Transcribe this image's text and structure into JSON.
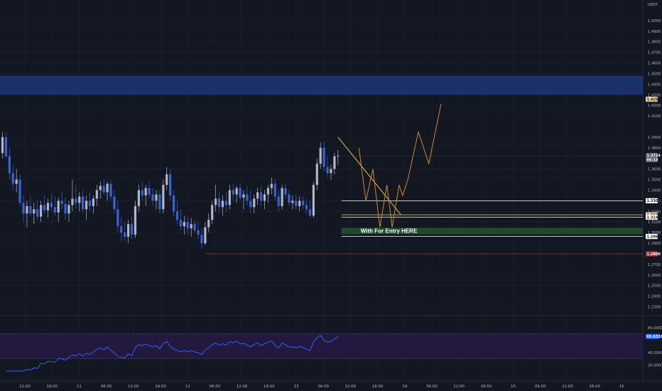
{
  "chart_data": {
    "type": "candlestick",
    "currency": "USDT",
    "price_ticks": [
      "1.5000",
      "1.4900",
      "1.4800",
      "1.4700",
      "1.4600",
      "1.4500",
      "1.4400",
      "1.4300",
      "1.4200",
      "1.4100",
      "1.3900",
      "1.3800",
      "1.3600",
      "1.3500",
      "1.3400",
      "1.3300",
      "1.3200",
      "1.3100",
      "1.3000",
      "1.2900",
      "1.2700",
      "1.2600",
      "1.2500",
      "1.2400",
      "1.2300"
    ],
    "time_ticks": [
      "12:00",
      "18:00",
      "11",
      "06:00",
      "12:00",
      "18:00",
      "12",
      "06:00",
      "12:00",
      "18:00",
      "13",
      "06:00",
      "12:00",
      "18:00",
      "14",
      "06:00",
      "12:00",
      "18:00",
      "15",
      "06:00",
      "12:00",
      "18:00",
      "16"
    ],
    "price_ylim": [
      1.227,
      1.51
    ],
    "last_price": "1.3724",
    "countdown": "06:13",
    "zone_high": [
      1.43,
      1.448
    ],
    "entry_zone": [
      1.2985,
      1.3045
    ],
    "entry_label": "With For Entry HERE",
    "levels": [
      {
        "label": "1.4258",
        "price": 1.4258,
        "color": "#f2d59b"
      },
      {
        "label": "1.3300",
        "price": 1.33,
        "color": "#ffffff"
      },
      {
        "label": "1.3168",
        "price": 1.3168,
        "color": "#f2d59b"
      },
      {
        "label": "1.3145",
        "price": 1.3145,
        "color": "#ffffff"
      },
      {
        "label": "1.2963",
        "price": 1.2963,
        "color": "#ffffff"
      },
      {
        "label": "1.2800",
        "price": 1.28,
        "color": "#b22833"
      }
    ],
    "trendline": {
      "from": [
        96,
        1.39
      ],
      "to": [
        114,
        1.3168
      ]
    },
    "projection": [
      [
        102,
        1.38
      ],
      [
        104,
        1.33
      ],
      [
        106,
        1.36
      ],
      [
        108,
        1.305
      ],
      [
        110,
        1.345
      ],
      [
        111.5,
        1.305
      ],
      [
        113.5,
        1.345
      ],
      [
        114.5,
        1.335
      ],
      [
        116,
        1.35
      ],
      [
        119,
        1.395
      ],
      [
        122,
        1.365
      ],
      [
        125.5,
        1.4215
      ]
    ],
    "rsi": {
      "value_label": "65.6318",
      "ticks": [
        "80.0000",
        "40.0000",
        "20.0000"
      ],
      "upper": 70,
      "lower": 30,
      "ylim": [
        10,
        90
      ],
      "last": 65.6318
    },
    "candles": [
      {
        "t": 0,
        "o": 1.375,
        "h": 1.395,
        "l": 1.37,
        "c": 1.39
      },
      {
        "t": 1,
        "o": 1.39,
        "h": 1.394,
        "l": 1.37,
        "c": 1.372
      },
      {
        "t": 2,
        "o": 1.372,
        "h": 1.38,
        "l": 1.35,
        "c": 1.356
      },
      {
        "t": 3,
        "o": 1.356,
        "h": 1.363,
        "l": 1.34,
        "c": 1.346
      },
      {
        "t": 4,
        "o": 1.346,
        "h": 1.36,
        "l": 1.338,
        "c": 1.35
      },
      {
        "t": 5,
        "o": 1.35,
        "h": 1.355,
        "l": 1.325,
        "c": 1.328
      },
      {
        "t": 6,
        "o": 1.328,
        "h": 1.335,
        "l": 1.31,
        "c": 1.318
      },
      {
        "t": 7,
        "o": 1.318,
        "h": 1.33,
        "l": 1.305,
        "c": 1.325
      },
      {
        "t": 8,
        "o": 1.325,
        "h": 1.335,
        "l": 1.315,
        "c": 1.318
      },
      {
        "t": 9,
        "o": 1.318,
        "h": 1.328,
        "l": 1.308,
        "c": 1.322
      },
      {
        "t": 10,
        "o": 1.322,
        "h": 1.33,
        "l": 1.312,
        "c": 1.315
      },
      {
        "t": 11,
        "o": 1.315,
        "h": 1.33,
        "l": 1.31,
        "c": 1.326
      },
      {
        "t": 12,
        "o": 1.326,
        "h": 1.335,
        "l": 1.318,
        "c": 1.321
      },
      {
        "t": 13,
        "o": 1.321,
        "h": 1.332,
        "l": 1.314,
        "c": 1.328
      },
      {
        "t": 14,
        "o": 1.328,
        "h": 1.336,
        "l": 1.32,
        "c": 1.324
      },
      {
        "t": 15,
        "o": 1.324,
        "h": 1.334,
        "l": 1.316,
        "c": 1.319
      },
      {
        "t": 16,
        "o": 1.319,
        "h": 1.333,
        "l": 1.31,
        "c": 1.33
      },
      {
        "t": 17,
        "o": 1.33,
        "h": 1.338,
        "l": 1.322,
        "c": 1.327
      },
      {
        "t": 18,
        "o": 1.327,
        "h": 1.333,
        "l": 1.312,
        "c": 1.318
      },
      {
        "t": 19,
        "o": 1.318,
        "h": 1.33,
        "l": 1.31,
        "c": 1.326
      },
      {
        "t": 20,
        "o": 1.326,
        "h": 1.35,
        "l": 1.32,
        "c": 1.332
      },
      {
        "t": 21,
        "o": 1.332,
        "h": 1.345,
        "l": 1.322,
        "c": 1.328
      },
      {
        "t": 22,
        "o": 1.328,
        "h": 1.338,
        "l": 1.32,
        "c": 1.334
      },
      {
        "t": 23,
        "o": 1.334,
        "h": 1.34,
        "l": 1.318,
        "c": 1.322
      },
      {
        "t": 24,
        "o": 1.322,
        "h": 1.335,
        "l": 1.312,
        "c": 1.33
      },
      {
        "t": 25,
        "o": 1.33,
        "h": 1.338,
        "l": 1.32,
        "c": 1.325
      },
      {
        "t": 26,
        "o": 1.325,
        "h": 1.335,
        "l": 1.318,
        "c": 1.332
      },
      {
        "t": 27,
        "o": 1.332,
        "h": 1.345,
        "l": 1.325,
        "c": 1.34
      },
      {
        "t": 28,
        "o": 1.34,
        "h": 1.348,
        "l": 1.332,
        "c": 1.344
      },
      {
        "t": 29,
        "o": 1.344,
        "h": 1.35,
        "l": 1.336,
        "c": 1.338
      },
      {
        "t": 30,
        "o": 1.338,
        "h": 1.348,
        "l": 1.33,
        "c": 1.346
      },
      {
        "t": 31,
        "o": 1.346,
        "h": 1.349,
        "l": 1.33,
        "c": 1.334
      },
      {
        "t": 32,
        "o": 1.334,
        "h": 1.34,
        "l": 1.318,
        "c": 1.322
      },
      {
        "t": 33,
        "o": 1.322,
        "h": 1.33,
        "l": 1.3,
        "c": 1.306
      },
      {
        "t": 34,
        "o": 1.306,
        "h": 1.315,
        "l": 1.292,
        "c": 1.3
      },
      {
        "t": 35,
        "o": 1.3,
        "h": 1.31,
        "l": 1.292,
        "c": 1.296
      },
      {
        "t": 36,
        "o": 1.296,
        "h": 1.312,
        "l": 1.29,
        "c": 1.308
      },
      {
        "t": 37,
        "o": 1.308,
        "h": 1.315,
        "l": 1.294,
        "c": 1.298
      },
      {
        "t": 38,
        "o": 1.298,
        "h": 1.33,
        "l": 1.295,
        "c": 1.325
      },
      {
        "t": 39,
        "o": 1.325,
        "h": 1.345,
        "l": 1.32,
        "c": 1.34
      },
      {
        "t": 40,
        "o": 1.34,
        "h": 1.348,
        "l": 1.33,
        "c": 1.335
      },
      {
        "t": 41,
        "o": 1.335,
        "h": 1.345,
        "l": 1.325,
        "c": 1.342
      },
      {
        "t": 42,
        "o": 1.342,
        "h": 1.348,
        "l": 1.332,
        "c": 1.336
      },
      {
        "t": 43,
        "o": 1.336,
        "h": 1.342,
        "l": 1.326,
        "c": 1.33
      },
      {
        "t": 44,
        "o": 1.33,
        "h": 1.34,
        "l": 1.322,
        "c": 1.336
      },
      {
        "t": 45,
        "o": 1.336,
        "h": 1.34,
        "l": 1.318,
        "c": 1.322
      },
      {
        "t": 46,
        "o": 1.322,
        "h": 1.35,
        "l": 1.318,
        "c": 1.345
      },
      {
        "t": 47,
        "o": 1.345,
        "h": 1.362,
        "l": 1.34,
        "c": 1.355
      },
      {
        "t": 48,
        "o": 1.355,
        "h": 1.36,
        "l": 1.33,
        "c": 1.335
      },
      {
        "t": 49,
        "o": 1.335,
        "h": 1.34,
        "l": 1.315,
        "c": 1.32
      },
      {
        "t": 50,
        "o": 1.32,
        "h": 1.33,
        "l": 1.308,
        "c": 1.312
      },
      {
        "t": 51,
        "o": 1.312,
        "h": 1.322,
        "l": 1.302,
        "c": 1.306
      },
      {
        "t": 52,
        "o": 1.306,
        "h": 1.316,
        "l": 1.298,
        "c": 1.31
      },
      {
        "t": 53,
        "o": 1.31,
        "h": 1.315,
        "l": 1.298,
        "c": 1.304
      },
      {
        "t": 54,
        "o": 1.304,
        "h": 1.314,
        "l": 1.296,
        "c": 1.308
      },
      {
        "t": 55,
        "o": 1.308,
        "h": 1.312,
        "l": 1.3,
        "c": 1.302
      },
      {
        "t": 56,
        "o": 1.302,
        "h": 1.31,
        "l": 1.294,
        "c": 1.298
      },
      {
        "t": 57,
        "o": 1.298,
        "h": 1.304,
        "l": 1.285,
        "c": 1.29
      },
      {
        "t": 58,
        "o": 1.29,
        "h": 1.31,
        "l": 1.288,
        "c": 1.305
      },
      {
        "t": 59,
        "o": 1.305,
        "h": 1.318,
        "l": 1.3,
        "c": 1.312
      },
      {
        "t": 60,
        "o": 1.312,
        "h": 1.33,
        "l": 1.308,
        "c": 1.326
      },
      {
        "t": 61,
        "o": 1.326,
        "h": 1.345,
        "l": 1.32,
        "c": 1.332
      },
      {
        "t": 62,
        "o": 1.332,
        "h": 1.338,
        "l": 1.318,
        "c": 1.324
      },
      {
        "t": 63,
        "o": 1.324,
        "h": 1.335,
        "l": 1.316,
        "c": 1.33
      },
      {
        "t": 64,
        "o": 1.33,
        "h": 1.338,
        "l": 1.32,
        "c": 1.326
      },
      {
        "t": 65,
        "o": 1.326,
        "h": 1.345,
        "l": 1.322,
        "c": 1.34
      },
      {
        "t": 66,
        "o": 1.34,
        "h": 1.346,
        "l": 1.33,
        "c": 1.336
      },
      {
        "t": 67,
        "o": 1.336,
        "h": 1.344,
        "l": 1.328,
        "c": 1.342
      },
      {
        "t": 68,
        "o": 1.342,
        "h": 1.346,
        "l": 1.33,
        "c": 1.333
      },
      {
        "t": 69,
        "o": 1.333,
        "h": 1.34,
        "l": 1.322,
        "c": 1.336
      },
      {
        "t": 70,
        "o": 1.336,
        "h": 1.344,
        "l": 1.326,
        "c": 1.33
      },
      {
        "t": 71,
        "o": 1.33,
        "h": 1.34,
        "l": 1.318,
        "c": 1.324
      },
      {
        "t": 72,
        "o": 1.324,
        "h": 1.336,
        "l": 1.318,
        "c": 1.332
      },
      {
        "t": 73,
        "o": 1.332,
        "h": 1.342,
        "l": 1.326,
        "c": 1.338
      },
      {
        "t": 74,
        "o": 1.338,
        "h": 1.344,
        "l": 1.325,
        "c": 1.33
      },
      {
        "t": 75,
        "o": 1.33,
        "h": 1.34,
        "l": 1.322,
        "c": 1.336
      },
      {
        "t": 76,
        "o": 1.336,
        "h": 1.345,
        "l": 1.328,
        "c": 1.342
      },
      {
        "t": 77,
        "o": 1.342,
        "h": 1.352,
        "l": 1.336,
        "c": 1.346
      },
      {
        "t": 78,
        "o": 1.346,
        "h": 1.35,
        "l": 1.33,
        "c": 1.334
      },
      {
        "t": 79,
        "o": 1.334,
        "h": 1.34,
        "l": 1.32,
        "c": 1.325
      },
      {
        "t": 80,
        "o": 1.325,
        "h": 1.345,
        "l": 1.322,
        "c": 1.342
      },
      {
        "t": 81,
        "o": 1.342,
        "h": 1.346,
        "l": 1.332,
        "c": 1.336
      },
      {
        "t": 82,
        "o": 1.336,
        "h": 1.34,
        "l": 1.325,
        "c": 1.328
      },
      {
        "t": 83,
        "o": 1.328,
        "h": 1.335,
        "l": 1.322,
        "c": 1.33
      },
      {
        "t": 84,
        "o": 1.33,
        "h": 1.336,
        "l": 1.322,
        "c": 1.325
      },
      {
        "t": 85,
        "o": 1.325,
        "h": 1.334,
        "l": 1.32,
        "c": 1.33
      },
      {
        "t": 86,
        "o": 1.33,
        "h": 1.334,
        "l": 1.322,
        "c": 1.326
      },
      {
        "t": 87,
        "o": 1.326,
        "h": 1.332,
        "l": 1.318,
        "c": 1.322
      },
      {
        "t": 88,
        "o": 1.322,
        "h": 1.33,
        "l": 1.314,
        "c": 1.316
      },
      {
        "t": 89,
        "o": 1.316,
        "h": 1.348,
        "l": 1.314,
        "c": 1.345
      },
      {
        "t": 90,
        "o": 1.345,
        "h": 1.37,
        "l": 1.34,
        "c": 1.365
      },
      {
        "t": 91,
        "o": 1.365,
        "h": 1.385,
        "l": 1.36,
        "c": 1.38
      },
      {
        "t": 92,
        "o": 1.38,
        "h": 1.386,
        "l": 1.358,
        "c": 1.362
      },
      {
        "t": 93,
        "o": 1.362,
        "h": 1.372,
        "l": 1.352,
        "c": 1.356
      },
      {
        "t": 94,
        "o": 1.356,
        "h": 1.364,
        "l": 1.35,
        "c": 1.36
      },
      {
        "t": 95,
        "o": 1.36,
        "h": 1.375,
        "l": 1.355,
        "c": 1.372
      },
      {
        "t": 96,
        "o": 1.372,
        "h": 1.378,
        "l": 1.364,
        "c": 1.3724
      }
    ]
  },
  "ui": {
    "colors": {
      "background": "#131722",
      "grid": "#1e2230",
      "candle_up": "#b0b6c8",
      "candle_down": "#3b62d4",
      "zone": "#1c3678",
      "entry_zone": "#1f4b2c",
      "trendline": "#f2c04a",
      "projection": "#c98a2e",
      "rsi_line": "#2962ff",
      "rsi_band": "#23183e"
    }
  }
}
